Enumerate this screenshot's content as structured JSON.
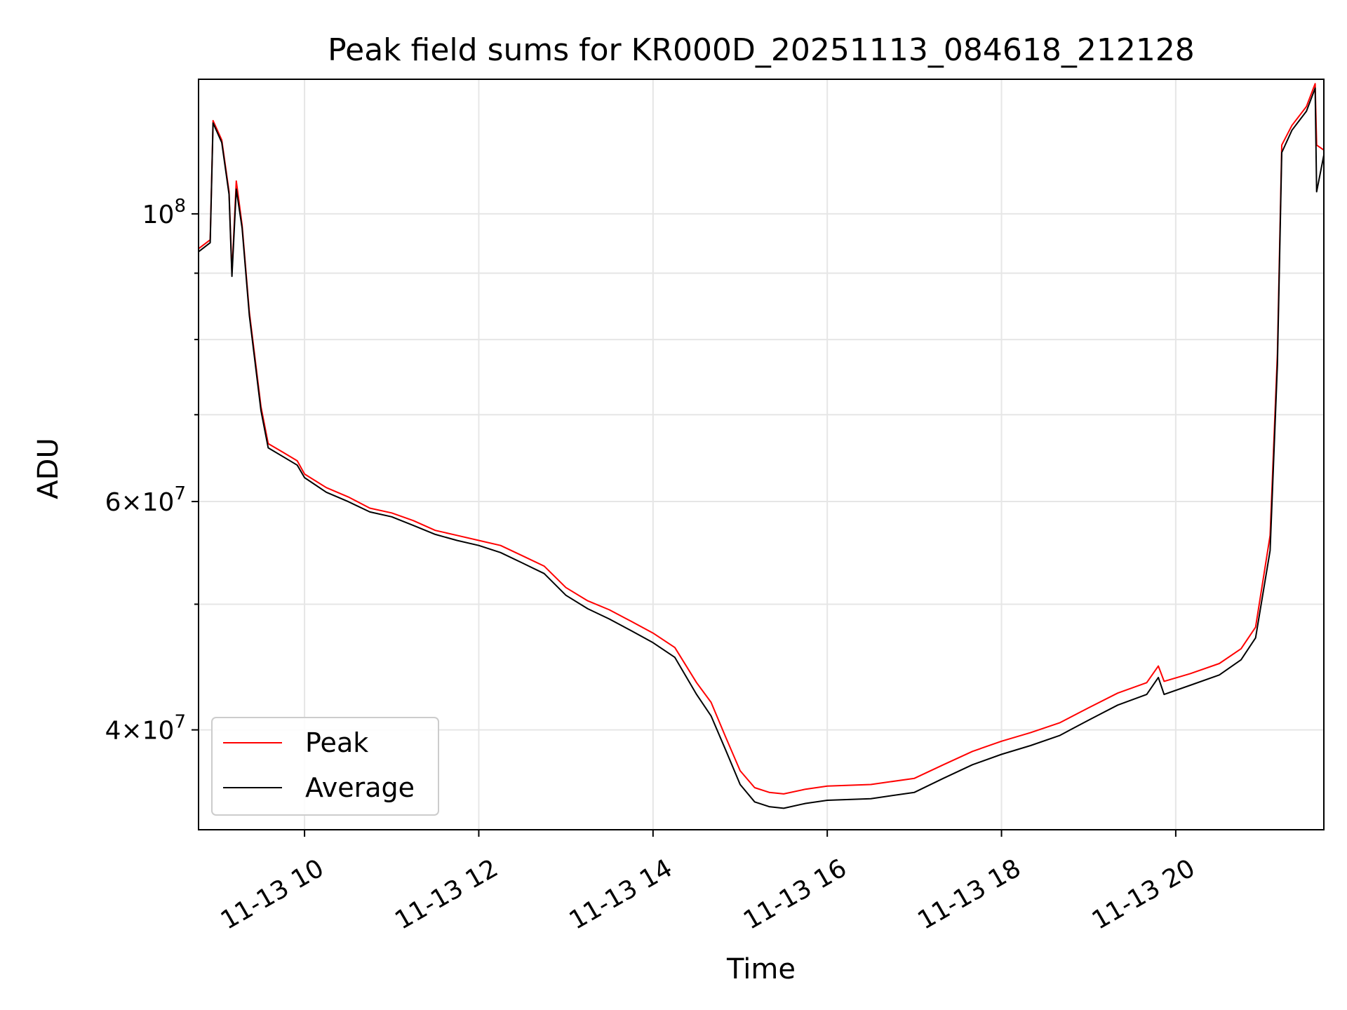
{
  "chart_data": {
    "type": "line",
    "title": "Peak field sums for KR000D_20251113_084618_212128",
    "xlabel": "Time",
    "ylabel": "ADU",
    "yscale": "log",
    "grid": true,
    "legend_position": "lower left",
    "xlim": [
      "2025-11-13 08:47",
      "2025-11-13 21:42"
    ],
    "ylim": [
      33500000,
      127000000
    ],
    "x_ticks": [
      {
        "t": "2025-11-13 10:00",
        "label": "11-13 10"
      },
      {
        "t": "2025-11-13 12:00",
        "label": "11-13 12"
      },
      {
        "t": "2025-11-13 14:00",
        "label": "11-13 14"
      },
      {
        "t": "2025-11-13 16:00",
        "label": "11-13 16"
      },
      {
        "t": "2025-11-13 18:00",
        "label": "11-13 18"
      },
      {
        "t": "2025-11-13 20:00",
        "label": "11-13 20"
      }
    ],
    "y_ticks": [
      {
        "v": 40000000,
        "base": "4×10",
        "exp": "7"
      },
      {
        "v": 60000000,
        "base": "6×10",
        "exp": "7"
      },
      {
        "v": 100000000,
        "base": "10",
        "exp": "8"
      }
    ],
    "y_minor": [
      50000000,
      70000000,
      80000000,
      90000000
    ],
    "series": [
      {
        "name": "Peak",
        "color": "#ff0000",
        "points": [
          [
            "2025-11-13 08:47",
            94000000
          ],
          [
            "2025-11-13 08:55",
            95500000
          ],
          [
            "2025-11-13 08:57",
            118000000
          ],
          [
            "2025-11-13 09:03",
            114000000
          ],
          [
            "2025-11-13 09:08",
            104000000
          ],
          [
            "2025-11-13 09:10",
            90000000
          ],
          [
            "2025-11-13 09:13",
            106000000
          ],
          [
            "2025-11-13 09:17",
            98000000
          ],
          [
            "2025-11-13 09:22",
            84000000
          ],
          [
            "2025-11-13 09:30",
            71000000
          ],
          [
            "2025-11-13 09:35",
            66500000
          ],
          [
            "2025-11-13 09:45",
            65500000
          ],
          [
            "2025-11-13 09:55",
            64500000
          ],
          [
            "2025-11-13 10:00",
            63000000
          ],
          [
            "2025-11-13 10:15",
            61500000
          ],
          [
            "2025-11-13 10:30",
            60500000
          ],
          [
            "2025-11-13 10:45",
            59300000
          ],
          [
            "2025-11-13 11:00",
            58800000
          ],
          [
            "2025-11-13 11:15",
            58000000
          ],
          [
            "2025-11-13 11:30",
            57000000
          ],
          [
            "2025-11-13 11:45",
            56500000
          ],
          [
            "2025-11-13 12:00",
            56000000
          ],
          [
            "2025-11-13 12:15",
            55500000
          ],
          [
            "2025-11-13 12:30",
            54500000
          ],
          [
            "2025-11-13 12:45",
            53500000
          ],
          [
            "2025-11-13 13:00",
            51500000
          ],
          [
            "2025-11-13 13:15",
            50300000
          ],
          [
            "2025-11-13 13:30",
            49500000
          ],
          [
            "2025-11-13 13:45",
            48500000
          ],
          [
            "2025-11-13 14:00",
            47500000
          ],
          [
            "2025-11-13 14:15",
            46300000
          ],
          [
            "2025-11-13 14:30",
            43500000
          ],
          [
            "2025-11-13 14:40",
            42000000
          ],
          [
            "2025-11-13 14:50",
            39500000
          ],
          [
            "2025-11-13 15:00",
            37200000
          ],
          [
            "2025-11-13 15:10",
            36100000
          ],
          [
            "2025-11-13 15:20",
            35800000
          ],
          [
            "2025-11-13 15:30",
            35700000
          ],
          [
            "2025-11-13 15:45",
            36000000
          ],
          [
            "2025-11-13 16:00",
            36200000
          ],
          [
            "2025-11-13 16:30",
            36300000
          ],
          [
            "2025-11-13 17:00",
            36700000
          ],
          [
            "2025-11-13 17:20",
            37600000
          ],
          [
            "2025-11-13 17:40",
            38500000
          ],
          [
            "2025-11-13 18:00",
            39200000
          ],
          [
            "2025-11-13 18:20",
            39800000
          ],
          [
            "2025-11-13 18:40",
            40500000
          ],
          [
            "2025-11-13 19:00",
            41600000
          ],
          [
            "2025-11-13 19:20",
            42700000
          ],
          [
            "2025-11-13 19:40",
            43500000
          ],
          [
            "2025-11-13 19:48",
            44800000
          ],
          [
            "2025-11-13 19:52",
            43600000
          ],
          [
            "2025-11-13 20:10",
            44200000
          ],
          [
            "2025-11-13 20:30",
            45000000
          ],
          [
            "2025-11-13 20:45",
            46200000
          ],
          [
            "2025-11-13 20:55",
            48000000
          ],
          [
            "2025-11-13 21:05",
            56500000
          ],
          [
            "2025-11-13 21:10",
            78000000
          ],
          [
            "2025-11-13 21:13",
            113000000
          ],
          [
            "2025-11-13 21:20",
            117000000
          ],
          [
            "2025-11-13 21:30",
            121000000
          ],
          [
            "2025-11-13 21:36",
            126000000
          ],
          [
            "2025-11-13 21:37",
            113000000
          ],
          [
            "2025-11-13 21:42",
            112000000
          ]
        ]
      },
      {
        "name": "Average",
        "color": "#000000",
        "points": [
          [
            "2025-11-13 08:47",
            93500000
          ],
          [
            "2025-11-13 08:55",
            95000000
          ],
          [
            "2025-11-13 08:57",
            117500000
          ],
          [
            "2025-11-13 09:03",
            113500000
          ],
          [
            "2025-11-13 09:08",
            103500000
          ],
          [
            "2025-11-13 09:10",
            89500000
          ],
          [
            "2025-11-13 09:13",
            104500000
          ],
          [
            "2025-11-13 09:17",
            97500000
          ],
          [
            "2025-11-13 09:22",
            83500000
          ],
          [
            "2025-11-13 09:30",
            70500000
          ],
          [
            "2025-11-13 09:35",
            66000000
          ],
          [
            "2025-11-13 09:45",
            65000000
          ],
          [
            "2025-11-13 09:55",
            64000000
          ],
          [
            "2025-11-13 10:00",
            62600000
          ],
          [
            "2025-11-13 10:15",
            61000000
          ],
          [
            "2025-11-13 10:30",
            60000000
          ],
          [
            "2025-11-13 10:45",
            58900000
          ],
          [
            "2025-11-13 11:00",
            58400000
          ],
          [
            "2025-11-13 11:15",
            57500000
          ],
          [
            "2025-11-13 11:30",
            56600000
          ],
          [
            "2025-11-13 11:45",
            56000000
          ],
          [
            "2025-11-13 12:00",
            55500000
          ],
          [
            "2025-11-13 12:15",
            54800000
          ],
          [
            "2025-11-13 12:30",
            53800000
          ],
          [
            "2025-11-13 12:45",
            52800000
          ],
          [
            "2025-11-13 13:00",
            50800000
          ],
          [
            "2025-11-13 13:15",
            49600000
          ],
          [
            "2025-11-13 13:30",
            48700000
          ],
          [
            "2025-11-13 13:45",
            47700000
          ],
          [
            "2025-11-13 14:00",
            46700000
          ],
          [
            "2025-11-13 14:15",
            45500000
          ],
          [
            "2025-11-13 14:30",
            42600000
          ],
          [
            "2025-11-13 14:40",
            41000000
          ],
          [
            "2025-11-13 14:50",
            38600000
          ],
          [
            "2025-11-13 15:00",
            36300000
          ],
          [
            "2025-11-13 15:10",
            35200000
          ],
          [
            "2025-11-13 15:20",
            34900000
          ],
          [
            "2025-11-13 15:30",
            34800000
          ],
          [
            "2025-11-13 15:45",
            35100000
          ],
          [
            "2025-11-13 16:00",
            35300000
          ],
          [
            "2025-11-13 16:30",
            35400000
          ],
          [
            "2025-11-13 17:00",
            35800000
          ],
          [
            "2025-11-13 17:20",
            36700000
          ],
          [
            "2025-11-13 17:40",
            37600000
          ],
          [
            "2025-11-13 18:00",
            38300000
          ],
          [
            "2025-11-13 18:20",
            38900000
          ],
          [
            "2025-11-13 18:40",
            39600000
          ],
          [
            "2025-11-13 19:00",
            40700000
          ],
          [
            "2025-11-13 19:20",
            41800000
          ],
          [
            "2025-11-13 19:40",
            42600000
          ],
          [
            "2025-11-13 19:48",
            43900000
          ],
          [
            "2025-11-13 19:52",
            42600000
          ],
          [
            "2025-11-13 20:10",
            43300000
          ],
          [
            "2025-11-13 20:30",
            44100000
          ],
          [
            "2025-11-13 20:45",
            45300000
          ],
          [
            "2025-11-13 20:55",
            47100000
          ],
          [
            "2025-11-13 21:05",
            55000000
          ],
          [
            "2025-11-13 21:10",
            76500000
          ],
          [
            "2025-11-13 21:13",
            111500000
          ],
          [
            "2025-11-13 21:20",
            116000000
          ],
          [
            "2025-11-13 21:30",
            120000000
          ],
          [
            "2025-11-13 21:36",
            125000000
          ],
          [
            "2025-11-13 21:37",
            104000000
          ],
          [
            "2025-11-13 21:42",
            111000000
          ]
        ]
      }
    ]
  }
}
